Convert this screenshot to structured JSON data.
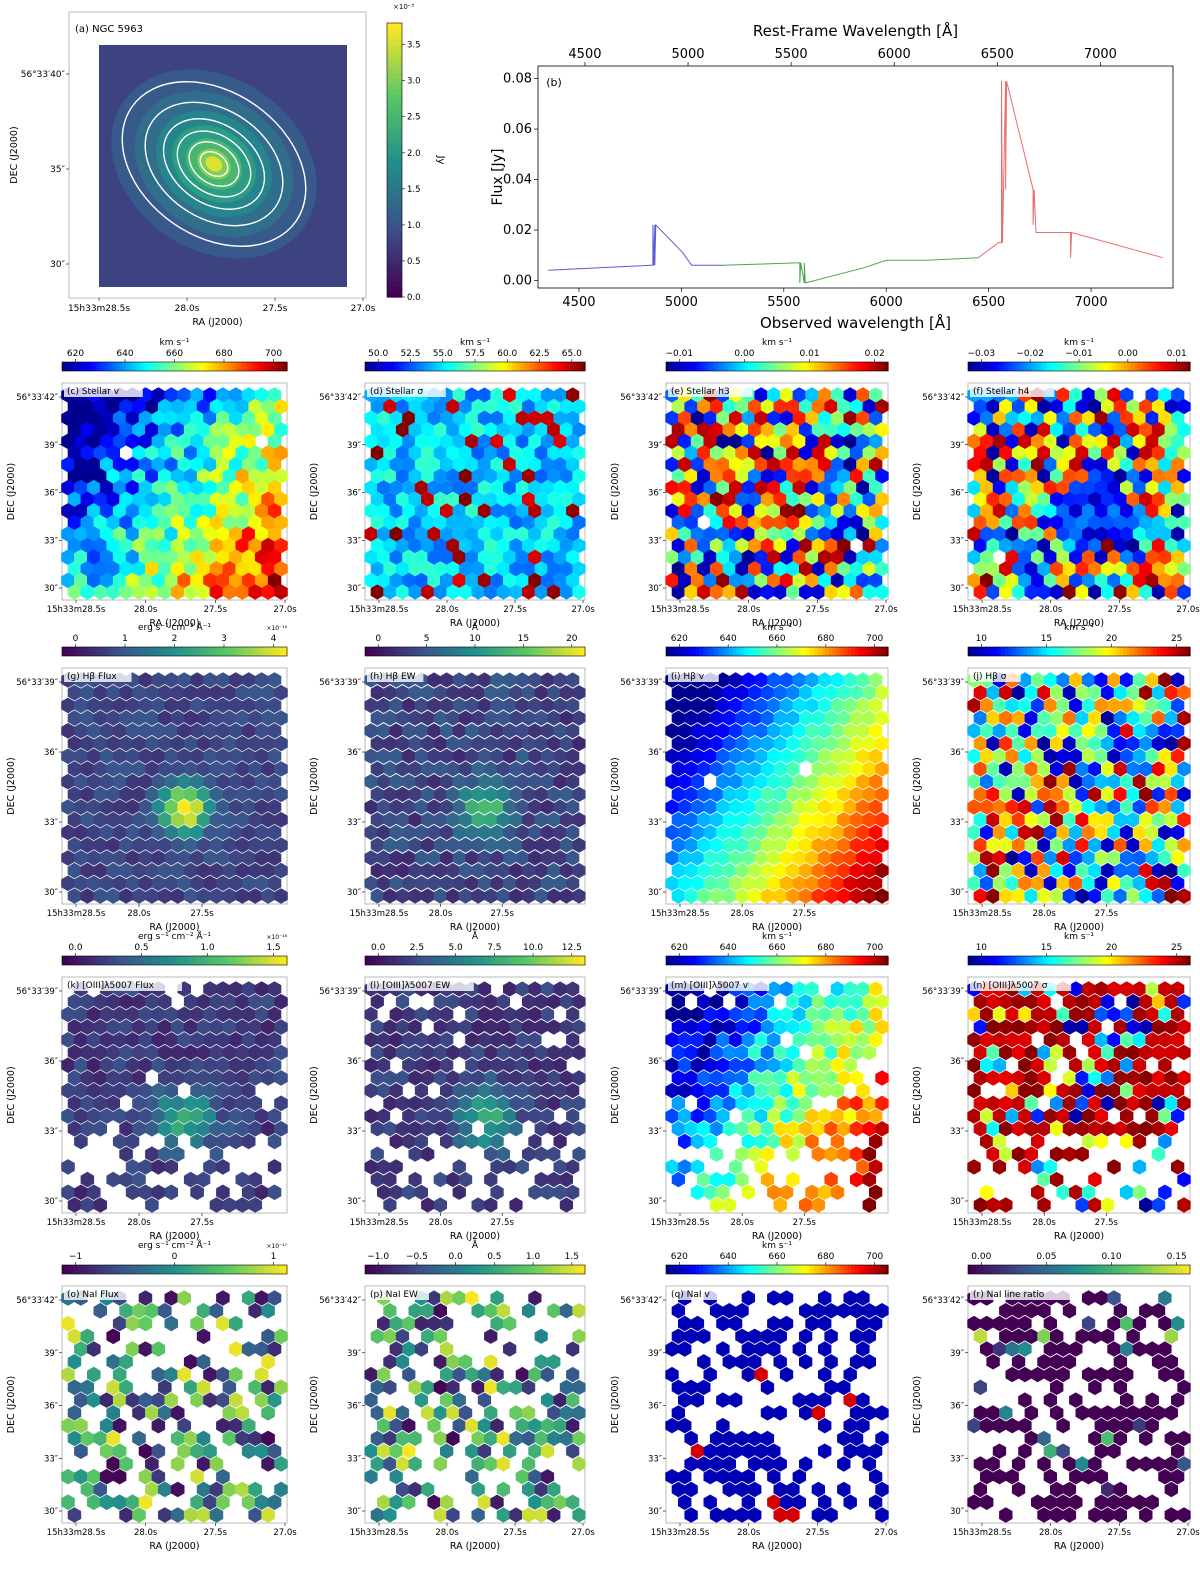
{
  "chart_data": [
    {
      "type": "heatmap",
      "panel": "a",
      "title": "(a) NGC 5963",
      "xlabel": "RA (J2000)",
      "ylabel": "DEC (J2000)",
      "x_ticks": [
        "15h33m28.5s",
        "28.0s",
        "27.5s",
        "27.0s"
      ],
      "y_ticks": [
        "56°33′40″",
        "35″",
        "30″"
      ],
      "colorbar": {
        "label": "Jy",
        "range": [
          0,
          3.8
        ],
        "ticks": [
          "0.0",
          "0.5",
          "1.0",
          "1.5",
          "2.0",
          "2.5",
          "3.0",
          "3.5"
        ],
        "scale_label": "×10⁻⁵",
        "cmap": "viridis"
      },
      "contours": true
    },
    {
      "type": "line",
      "panel": "b",
      "title": "(b)",
      "xlabel": "Observed wavelength [Å]",
      "top_xlabel": "Rest-Frame Wavelength [Å]",
      "ylabel": "Flux [Jy]",
      "xlim": [
        4300,
        7400
      ],
      "ylim": [
        -0.003,
        0.085
      ],
      "x_ticks": [
        4500,
        5000,
        5500,
        6000,
        6500,
        7000
      ],
      "top_x_ticks": [
        4500,
        5000,
        5500,
        6000,
        6500,
        7000
      ],
      "y_ticks": [
        "0.00",
        "0.02",
        "0.04",
        "0.06",
        "0.08"
      ],
      "series": [
        {
          "name": "blue",
          "color": "#5b5bd6",
          "x": [
            4350,
            4600,
            4850,
            4861,
            4870,
            5007,
            5050,
            5200
          ],
          "y": [
            0.004,
            0.005,
            0.006,
            0.022,
            0.006,
            0.011,
            0.006,
            0.006
          ]
        },
        {
          "name": "green",
          "color": "#4aa84a",
          "x": [
            5200,
            5577,
            5578,
            5600,
            5890,
            6000,
            6200,
            6450
          ],
          "y": [
            0.006,
            0.007,
            -0.001,
            0.007,
            0.005,
            0.008,
            0.008,
            0.009
          ]
        },
        {
          "name": "red",
          "color": "#e76f6f",
          "x": [
            6450,
            6548,
            6563,
            6583,
            6717,
            6731,
            6900,
            7350
          ],
          "y": [
            0.009,
            0.015,
            0.079,
            0.036,
            0.022,
            0.019,
            0.009,
            0.009
          ]
        }
      ]
    },
    {
      "type": "heatmap",
      "panel": "c",
      "title": "(c) Stellar v",
      "xlabel": "RA (J2000)",
      "ylabel": "DEC (J2000)",
      "x_ticks": [
        "15h33m28.5s",
        "28.0s",
        "27.5s",
        "27.0s"
      ],
      "y_ticks": [
        "56°33′42″",
        "39″",
        "36″",
        "33″",
        "30″"
      ],
      "colorbar": {
        "label": "km s⁻¹",
        "ticks": [
          "620",
          "640",
          "660",
          "680",
          "700"
        ],
        "range": [
          610,
          705
        ],
        "cmap": "jet"
      },
      "pattern": "gradient"
    },
    {
      "type": "heatmap",
      "panel": "d",
      "title": "(d) Stellar σ",
      "xlabel": "RA (J2000)",
      "ylabel": "DEC (J2000)",
      "x_ticks": [
        "15h33m28.5s",
        "28.0s",
        "27.5s",
        "27.0s"
      ],
      "y_ticks": [
        "56°33′42″",
        "39″",
        "36″",
        "33″",
        "30″"
      ],
      "colorbar": {
        "label": "km s⁻¹",
        "ticks": [
          "50.0",
          "52.5",
          "55.0",
          "57.5",
          "60.0",
          "62.5",
          "65.0"
        ],
        "range": [
          50,
          65
        ],
        "cmap": "jet"
      },
      "pattern": "low-noise"
    },
    {
      "type": "heatmap",
      "panel": "e",
      "title": "(e) Stellar h3",
      "xlabel": "RA (J2000)",
      "ylabel": "DEC (J2000)",
      "x_ticks": [
        "15h33m28.5s",
        "28.0s",
        "27.5s",
        "27.0s"
      ],
      "y_ticks": [
        "56°33′42″",
        "39″",
        "36″",
        "33″",
        "30″"
      ],
      "colorbar": {
        "label": "km s⁻¹",
        "ticks": [
          "−0.01",
          "0.00",
          "0.01",
          "0.02"
        ],
        "range": [
          -0.018,
          0.028
        ],
        "cmap": "jet"
      },
      "pattern": "noise"
    },
    {
      "type": "heatmap",
      "panel": "f",
      "title": "(f) Stellar h4",
      "xlabel": "RA (J2000)",
      "ylabel": "DEC (J2000)",
      "x_ticks": [
        "15h33m28.5s",
        "28.0s",
        "27.5s",
        "27.0s"
      ],
      "y_ticks": [
        "56°33′42″",
        "39″",
        "36″",
        "33″",
        "30″"
      ],
      "colorbar": {
        "label": "km s⁻¹",
        "ticks": [
          "−0.03",
          "−0.02",
          "−0.01",
          "0.00",
          "0.01"
        ],
        "range": [
          -0.03,
          0.015
        ],
        "cmap": "jet"
      },
      "pattern": "center-low"
    },
    {
      "type": "heatmap",
      "panel": "g",
      "title": "(g) Hβ Flux",
      "xlabel": "RA (J2000)",
      "ylabel": "DEC (J2000)",
      "x_ticks": [
        "15h33m28.5s",
        "28.0s",
        "27.5s"
      ],
      "y_ticks": [
        "56°33′39″",
        "36″",
        "33″",
        "30″"
      ],
      "colorbar": {
        "label": "erg s⁻¹ cm⁻² Å⁻¹",
        "ticks": [
          "0",
          "1",
          "2",
          "3",
          "4"
        ],
        "range": [
          0,
          4.8
        ],
        "scale_label": "×10⁻¹⁶",
        "cmap": "viridis"
      },
      "pattern": "peak"
    },
    {
      "type": "heatmap",
      "panel": "h",
      "title": "(h) Hβ EW",
      "xlabel": "RA (J2000)",
      "ylabel": "DEC (J2000)",
      "x_ticks": [
        "15h33m28.5s",
        "28.0s",
        "27.5s"
      ],
      "y_ticks": [
        "56°33′39″",
        "36″",
        "33″",
        "30″"
      ],
      "colorbar": {
        "label": "Å",
        "ticks": [
          "0",
          "5",
          "10",
          "15",
          "20"
        ],
        "range": [
          0,
          23
        ],
        "cmap": "viridis"
      },
      "pattern": "peak-soft"
    },
    {
      "type": "heatmap",
      "panel": "i",
      "title": "(i) Hβ v",
      "xlabel": "RA (J2000)",
      "ylabel": "DEC (J2000)",
      "x_ticks": [
        "15h33m28.5s",
        "28.0s",
        "27.5s"
      ],
      "y_ticks": [
        "56°33′39″",
        "36″",
        "33″",
        "30″"
      ],
      "colorbar": {
        "label": "km s⁻¹",
        "ticks": [
          "620",
          "640",
          "660",
          "680",
          "700"
        ],
        "range": [
          610,
          705
        ],
        "cmap": "jet"
      },
      "pattern": "gradient-smooth"
    },
    {
      "type": "heatmap",
      "panel": "j",
      "title": "(j) Hβ σ",
      "xlabel": "RA (J2000)",
      "ylabel": "DEC (J2000)",
      "x_ticks": [
        "15h33m28.5s",
        "28.0s",
        "27.5s"
      ],
      "y_ticks": [
        "56°33′39″",
        "36″",
        "33″",
        "30″"
      ],
      "colorbar": {
        "label": "km s⁻¹",
        "ticks": [
          "10",
          "15",
          "20",
          "25"
        ],
        "range": [
          7,
          25
        ],
        "cmap": "jet"
      },
      "pattern": "noise"
    },
    {
      "type": "heatmap",
      "panel": "k",
      "title": "(k) [OIII]λ5007 Flux",
      "xlabel": "RA (J2000)",
      "ylabel": "DEC (J2000)",
      "x_ticks": [
        "15h33m28.5s",
        "28.0s",
        "27.5s"
      ],
      "y_ticks": [
        "56°33′39″",
        "36″",
        "33″",
        "30″"
      ],
      "colorbar": {
        "label": "erg s⁻¹ cm⁻² Å⁻¹",
        "ticks": [
          "0.0",
          "0.5",
          "1.0",
          "1.5"
        ],
        "range": [
          0,
          1.8
        ],
        "scale_label": "×10⁻¹⁶",
        "cmap": "viridis"
      },
      "pattern": "peak-holes"
    },
    {
      "type": "heatmap",
      "panel": "l",
      "title": "(l) [OIII]λ5007 EW",
      "xlabel": "RA (J2000)",
      "ylabel": "DEC (J2000)",
      "x_ticks": [
        "15h33m28.5s",
        "28.0s",
        "27.5s"
      ],
      "y_ticks": [
        "56°33′39″",
        "36″",
        "33″",
        "30″"
      ],
      "colorbar": {
        "label": "Å",
        "ticks": [
          "0.0",
          "2.5",
          "5.0",
          "7.5",
          "10.0",
          "12.5"
        ],
        "range": [
          0,
          14
        ],
        "cmap": "viridis"
      },
      "pattern": "peak-holes"
    },
    {
      "type": "heatmap",
      "panel": "m",
      "title": "(m) [OIII]λ5007 v",
      "xlabel": "RA (J2000)",
      "ylabel": "DEC (J2000)",
      "x_ticks": [
        "15h33m28.5s",
        "28.0s",
        "27.5s"
      ],
      "y_ticks": [
        "56°33′39″",
        "36″",
        "33″",
        "30″"
      ],
      "colorbar": {
        "label": "km s⁻¹",
        "ticks": [
          "620",
          "640",
          "660",
          "680",
          "700"
        ],
        "range": [
          610,
          705
        ],
        "cmap": "jet"
      },
      "pattern": "gradient-holes"
    },
    {
      "type": "heatmap",
      "panel": "n",
      "title": "(n) [OIII]λ5007 σ",
      "xlabel": "RA (J2000)",
      "ylabel": "DEC (J2000)",
      "x_ticks": [
        "15h33m28.5s",
        "28.0s",
        "27.5s"
      ],
      "y_ticks": [
        "56°33′39″",
        "36″",
        "33″",
        "30″"
      ],
      "colorbar": {
        "label": "km s⁻¹",
        "ticks": [
          "10",
          "15",
          "20",
          "25"
        ],
        "range": [
          7,
          25
        ],
        "cmap": "jet"
      },
      "pattern": "high-noise-holes"
    },
    {
      "type": "heatmap",
      "panel": "o",
      "title": "(o) NaI Flux",
      "xlabel": "RA (J2000)",
      "ylabel": "DEC (J2000)",
      "x_ticks": [
        "15h33m28.5s",
        "28.0s",
        "27.5s",
        "27.0s"
      ],
      "y_ticks": [
        "56°33′42″",
        "39″",
        "36″",
        "33″",
        "30″"
      ],
      "colorbar": {
        "label": "erg s⁻¹ cm⁻² Å⁻¹",
        "ticks": [
          "−1",
          "0",
          "1"
        ],
        "range": [
          -1.4,
          1.8
        ],
        "scale_label": "×10⁻¹⁷",
        "cmap": "viridis"
      },
      "pattern": "sparse-noise"
    },
    {
      "type": "heatmap",
      "panel": "p",
      "title": "(p) NaI EW",
      "xlabel": "RA (J2000)",
      "ylabel": "DEC (J2000)",
      "x_ticks": [
        "15h33m28.5s",
        "28.0s",
        "27.5s",
        "27.0s"
      ],
      "y_ticks": [
        "56°33′42″",
        "39″",
        "36″",
        "33″",
        "30″"
      ],
      "colorbar": {
        "label": "Å",
        "ticks": [
          "−1.0",
          "−0.5",
          "0.0",
          "0.5",
          "1.0",
          "1.5"
        ],
        "range": [
          -1.3,
          1.7
        ],
        "cmap": "viridis"
      },
      "pattern": "sparse-noise"
    },
    {
      "type": "heatmap",
      "panel": "q",
      "title": "(q) NaI v",
      "xlabel": "RA (J2000)",
      "ylabel": "DEC (J2000)",
      "x_ticks": [
        "15h33m28.5s",
        "28.0s",
        "27.5s",
        "27.0s"
      ],
      "y_ticks": [
        "56°33′42″",
        "39″",
        "36″",
        "33″",
        "30″"
      ],
      "colorbar": {
        "label": "km s⁻¹",
        "ticks": [
          "620",
          "640",
          "660",
          "680",
          "700"
        ],
        "range": [
          600,
          715
        ],
        "cmap": "jet"
      },
      "pattern": "sparse-low"
    },
    {
      "type": "heatmap",
      "panel": "r",
      "title": "(r) NaI line ratio",
      "xlabel": "RA (J2000)",
      "ylabel": "DEC (J2000)",
      "x_ticks": [
        "15h33m28.5s",
        "28.0s",
        "27.5s",
        "27.0s"
      ],
      "y_ticks": [
        "56°33′42″",
        "39″",
        "36″",
        "33″",
        "30″"
      ],
      "colorbar": {
        "label": "",
        "ticks": [
          "0.00",
          "0.05",
          "0.10",
          "0.15"
        ],
        "range": [
          0,
          0.19
        ],
        "cmap": "viridis"
      },
      "pattern": "sparse-low-viridis"
    }
  ]
}
